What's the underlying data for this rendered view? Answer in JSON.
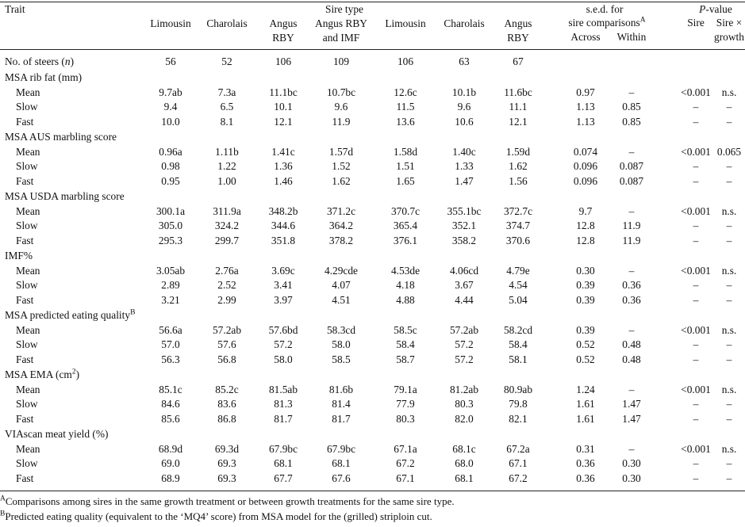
{
  "header": {
    "trait": "Trait",
    "sire_type": "Sire type",
    "columns": [
      {
        "id": "lim1",
        "l1": "",
        "l2": "Limousin",
        "l3": ""
      },
      {
        "id": "cha1",
        "l1": "",
        "l2": "Charolais",
        "l3": ""
      },
      {
        "id": "ang1",
        "l1": "",
        "l2": "Angus",
        "l3": "RBY"
      },
      {
        "id": "angimf",
        "l1": "",
        "l2": "Angus RBY",
        "l3": "and IMF"
      },
      {
        "id": "lim2",
        "l1": "",
        "l2": "Limousin",
        "l3": ""
      },
      {
        "id": "cha2",
        "l1": "",
        "l2": "Charolais",
        "l3": ""
      },
      {
        "id": "ang2",
        "l1": "",
        "l2": "Angus",
        "l3": "RBY"
      }
    ],
    "sed_title": "s.e.d. for",
    "sed_sub": "sire comparisons",
    "sed_sup": "A",
    "across": "Across",
    "within": "Within",
    "pvalue": "P",
    "pvalue_rest": "-value",
    "sire": "Sire",
    "sire_growth_1": "Sire ×",
    "sire_growth_2": "growth"
  },
  "n_row": {
    "label_pre": "No. of steers (",
    "label_n": "n",
    "label_post": ")",
    "values": [
      "56",
      "52",
      "106",
      "109",
      "106",
      "63",
      "67"
    ]
  },
  "sections": [
    {
      "title": "MSA rib fat (mm)",
      "sup": "",
      "rows": [
        {
          "label": "Mean",
          "v": [
            "9.7ab",
            "7.3a",
            "11.1bc",
            "10.7bc",
            "12.6c",
            "10.1b",
            "11.6bc"
          ],
          "across": "0.97",
          "within": "–",
          "sire": "<0.001",
          "sxg": "n.s."
        },
        {
          "label": "Slow",
          "v": [
            "9.4",
            "6.5",
            "10.1",
            "9.6",
            "11.5",
            "9.6",
            "11.1"
          ],
          "across": "1.13",
          "within": "0.85",
          "sire": "–",
          "sxg": "–"
        },
        {
          "label": "Fast",
          "v": [
            "10.0",
            "8.1",
            "12.1",
            "11.9",
            "13.6",
            "10.6",
            "12.1"
          ],
          "across": "1.13",
          "within": "0.85",
          "sire": "–",
          "sxg": "–"
        }
      ]
    },
    {
      "title": "MSA AUS marbling score",
      "sup": "",
      "rows": [
        {
          "label": "Mean",
          "v": [
            "0.96a",
            "1.11b",
            "1.41c",
            "1.57d",
            "1.58d",
            "1.40c",
            "1.59d"
          ],
          "across": "0.074",
          "within": "–",
          "sire": "<0.001",
          "sxg": "0.065"
        },
        {
          "label": "Slow",
          "v": [
            "0.98",
            "1.22",
            "1.36",
            "1.52",
            "1.51",
            "1.33",
            "1.62"
          ],
          "across": "0.096",
          "within": "0.087",
          "sire": "–",
          "sxg": "–"
        },
        {
          "label": "Fast",
          "v": [
            "0.95",
            "1.00",
            "1.46",
            "1.62",
            "1.65",
            "1.47",
            "1.56"
          ],
          "across": "0.096",
          "within": "0.087",
          "sire": "–",
          "sxg": "–"
        }
      ]
    },
    {
      "title": "MSA USDA marbling score",
      "sup": "",
      "rows": [
        {
          "label": "Mean",
          "v": [
            "300.1a",
            "311.9a",
            "348.2b",
            "371.2c",
            "370.7c",
            "355.1bc",
            "372.7c"
          ],
          "across": "9.7",
          "within": "–",
          "sire": "<0.001",
          "sxg": "n.s."
        },
        {
          "label": "Slow",
          "v": [
            "305.0",
            "324.2",
            "344.6",
            "364.2",
            "365.4",
            "352.1",
            "374.7"
          ],
          "across": "12.8",
          "within": "11.9",
          "sire": "–",
          "sxg": "–"
        },
        {
          "label": "Fast",
          "v": [
            "295.3",
            "299.7",
            "351.8",
            "378.2",
            "376.1",
            "358.2",
            "370.6"
          ],
          "across": "12.8",
          "within": "11.9",
          "sire": "–",
          "sxg": "–"
        }
      ]
    },
    {
      "title": "IMF%",
      "sup": "",
      "rows": [
        {
          "label": "Mean",
          "v": [
            "3.05ab",
            "2.76a",
            "3.69c",
            "4.29cde",
            "4.53de",
            "4.06cd",
            "4.79e"
          ],
          "across": "0.30",
          "within": "–",
          "sire": "<0.001",
          "sxg": "n.s."
        },
        {
          "label": "Slow",
          "v": [
            "2.89",
            "2.52",
            "3.41",
            "4.07",
            "4.18",
            "3.67",
            "4.54"
          ],
          "across": "0.39",
          "within": "0.36",
          "sire": "–",
          "sxg": "–"
        },
        {
          "label": "Fast",
          "v": [
            "3.21",
            "2.99",
            "3.97",
            "4.51",
            "4.88",
            "4.44",
            "5.04"
          ],
          "across": "0.39",
          "within": "0.36",
          "sire": "–",
          "sxg": "–"
        }
      ]
    },
    {
      "title": "MSA predicted eating quality",
      "sup": "B",
      "rows": [
        {
          "label": "Mean",
          "v": [
            "56.6a",
            "57.2ab",
            "57.6bd",
            "58.3cd",
            "58.5c",
            "57.2ab",
            "58.2cd"
          ],
          "across": "0.39",
          "within": "–",
          "sire": "<0.001",
          "sxg": "n.s."
        },
        {
          "label": "Slow",
          "v": [
            "57.0",
            "57.6",
            "57.2",
            "58.0",
            "58.4",
            "57.2",
            "58.4"
          ],
          "across": "0.52",
          "within": "0.48",
          "sire": "–",
          "sxg": "–"
        },
        {
          "label": "Fast",
          "v": [
            "56.3",
            "56.8",
            "58.0",
            "58.5",
            "58.7",
            "57.2",
            "58.1"
          ],
          "across": "0.52",
          "within": "0.48",
          "sire": "–",
          "sxg": "–"
        }
      ]
    },
    {
      "title": "MSA EMA (cm",
      "sup": "2",
      "title_post": ")",
      "rows": [
        {
          "label": "Mean",
          "v": [
            "85.1c",
            "85.2c",
            "81.5ab",
            "81.6b",
            "79.1a",
            "81.2ab",
            "80.9ab"
          ],
          "across": "1.24",
          "within": "–",
          "sire": "<0.001",
          "sxg": "n.s."
        },
        {
          "label": "Slow",
          "v": [
            "84.6",
            "83.6",
            "81.3",
            "81.4",
            "77.9",
            "80.3",
            "79.8"
          ],
          "across": "1.61",
          "within": "1.47",
          "sire": "–",
          "sxg": "–"
        },
        {
          "label": "Fast",
          "v": [
            "85.6",
            "86.8",
            "81.7",
            "81.7",
            "80.3",
            "82.0",
            "82.1"
          ],
          "across": "1.61",
          "within": "1.47",
          "sire": "–",
          "sxg": "–"
        }
      ]
    },
    {
      "title": "VIAscan meat yield (%)",
      "sup": "",
      "rows": [
        {
          "label": "Mean",
          "v": [
            "68.9d",
            "69.3d",
            "67.9bc",
            "67.9bc",
            "67.1a",
            "68.1c",
            "67.2a"
          ],
          "across": "0.31",
          "within": "–",
          "sire": "<0.001",
          "sxg": "n.s."
        },
        {
          "label": "Slow",
          "v": [
            "69.0",
            "69.3",
            "68.1",
            "68.1",
            "67.2",
            "68.0",
            "67.1"
          ],
          "across": "0.36",
          "within": "0.30",
          "sire": "–",
          "sxg": "–"
        },
        {
          "label": "Fast",
          "v": [
            "68.9",
            "69.3",
            "67.7",
            "67.6",
            "67.1",
            "68.1",
            "67.2"
          ],
          "across": "0.36",
          "within": "0.30",
          "sire": "–",
          "sxg": "–"
        }
      ]
    }
  ],
  "footnotes": [
    {
      "mark": "A",
      "text": "Comparisons among sires in the same growth treatment or between growth treatments for the same sire type."
    },
    {
      "mark": "B",
      "text": "Predicted eating quality (equivalent to the ‘MQ4’ score) from MSA model for the (grilled) striploin cut."
    }
  ]
}
